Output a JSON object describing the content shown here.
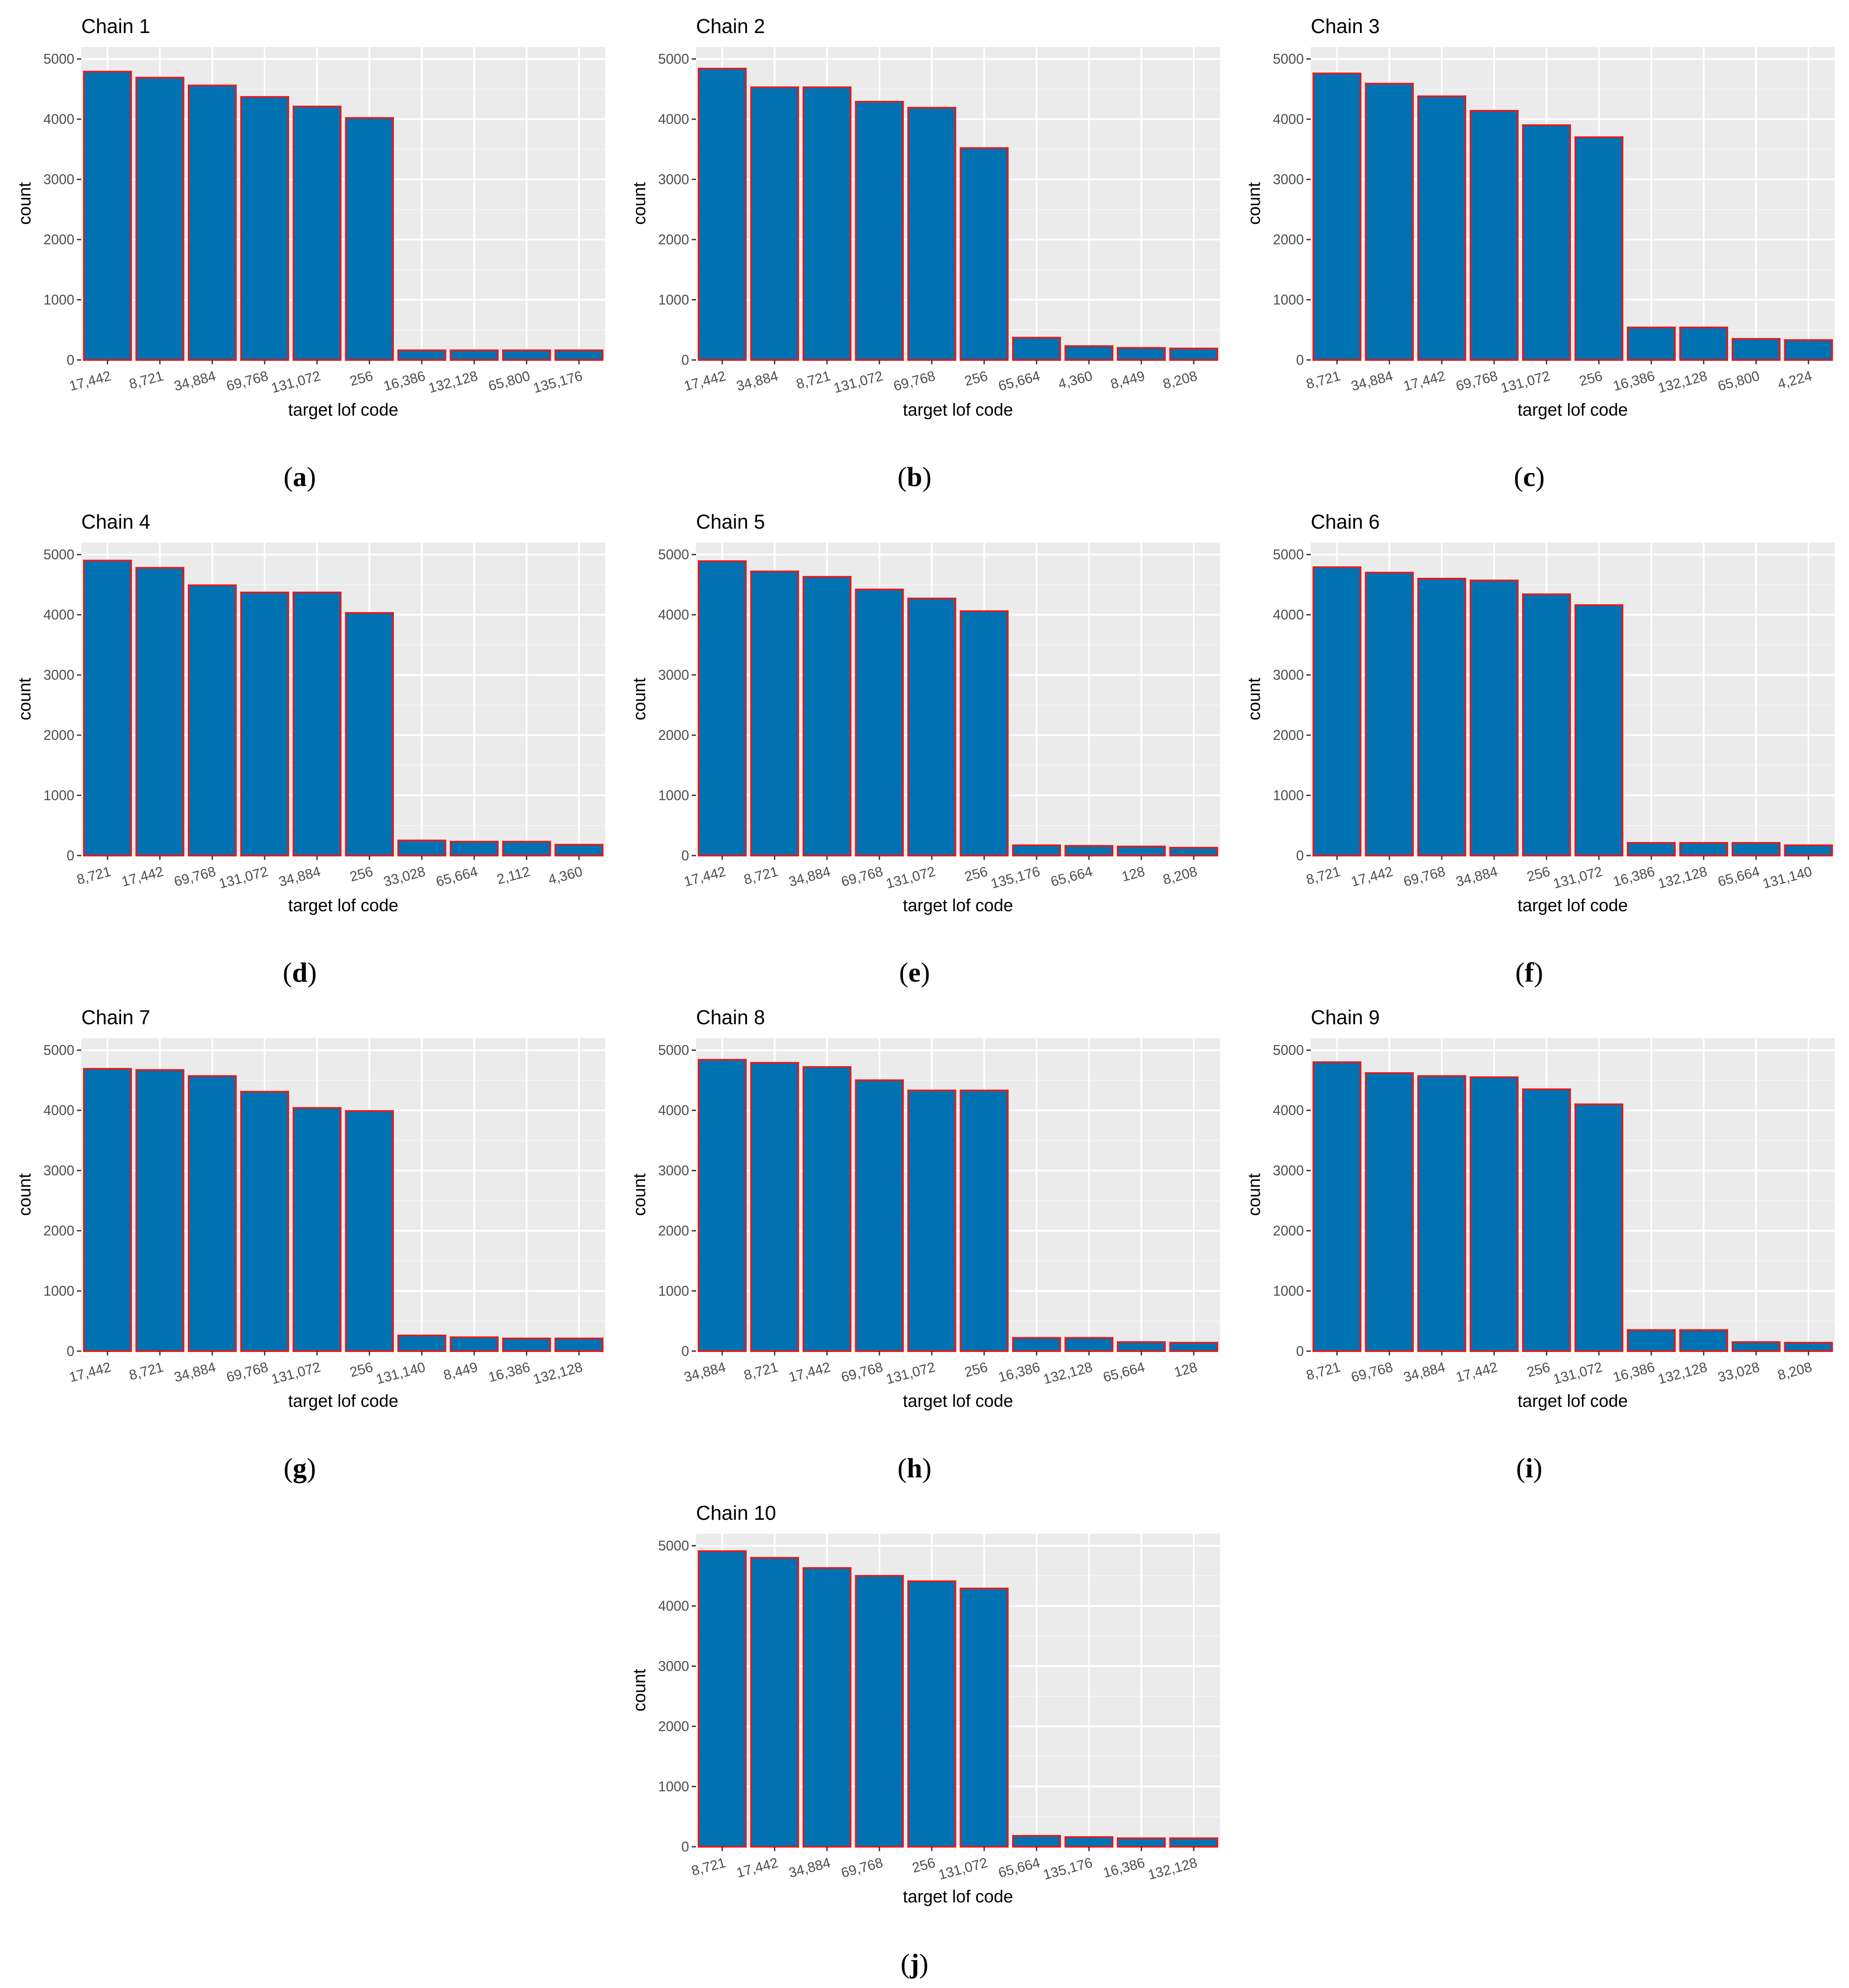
{
  "figure": {
    "bar_fill": "#0072b2",
    "bar_stroke": "#e31a1c",
    "panel_background": "#ebebeb",
    "grid_color": "#ffffff"
  },
  "chart_data": [
    {
      "type": "bar",
      "label": "(a)",
      "label_letter": "a",
      "title": "Chain 1",
      "xlabel": "target lof code",
      "ylabel": "count",
      "ylim": [
        0,
        5200
      ],
      "yticks": [
        0,
        1000,
        2000,
        3000,
        4000,
        5000
      ],
      "categories": [
        "17,442",
        "8,721",
        "34,884",
        "69,768",
        "131,072",
        "256",
        "16,386",
        "132,128",
        "65,800",
        "135,176"
      ],
      "values": [
        4790,
        4690,
        4560,
        4370,
        4210,
        4020,
        160,
        160,
        160,
        160
      ]
    },
    {
      "type": "bar",
      "label": "(b)",
      "label_letter": "b",
      "title": "Chain 2",
      "xlabel": "target lof code",
      "ylabel": "count",
      "ylim": [
        0,
        5200
      ],
      "yticks": [
        0,
        1000,
        2000,
        3000,
        4000,
        5000
      ],
      "categories": [
        "17,442",
        "34,884",
        "8,721",
        "131,072",
        "69,768",
        "256",
        "65,664",
        "4,360",
        "8,449",
        "8,208"
      ],
      "values": [
        4840,
        4530,
        4530,
        4290,
        4190,
        3520,
        370,
        230,
        200,
        190
      ]
    },
    {
      "type": "bar",
      "label": "(c)",
      "label_letter": "c",
      "title": "Chain 3",
      "xlabel": "target lof code",
      "ylabel": "count",
      "ylim": [
        0,
        5200
      ],
      "yticks": [
        0,
        1000,
        2000,
        3000,
        4000,
        5000
      ],
      "categories": [
        "8,721",
        "34,884",
        "17,442",
        "69,768",
        "131,072",
        "256",
        "16,386",
        "132,128",
        "65,800",
        "4,224"
      ],
      "values": [
        4760,
        4590,
        4380,
        4140,
        3900,
        3700,
        540,
        540,
        350,
        330
      ]
    },
    {
      "type": "bar",
      "label": "(d)",
      "label_letter": "d",
      "title": "Chain 4",
      "xlabel": "target lof code",
      "ylabel": "count",
      "ylim": [
        0,
        5200
      ],
      "yticks": [
        0,
        1000,
        2000,
        3000,
        4000,
        5000
      ],
      "categories": [
        "8,721",
        "17,442",
        "69,768",
        "131,072",
        "34,884",
        "256",
        "33,028",
        "65,664",
        "2,112",
        "4,360"
      ],
      "values": [
        4900,
        4780,
        4490,
        4370,
        4370,
        4030,
        250,
        230,
        230,
        180
      ]
    },
    {
      "type": "bar",
      "label": "(e)",
      "label_letter": "e",
      "title": "Chain 5",
      "xlabel": "target lof code",
      "ylabel": "count",
      "ylim": [
        0,
        5200
      ],
      "yticks": [
        0,
        1000,
        2000,
        3000,
        4000,
        5000
      ],
      "categories": [
        "17,442",
        "8,721",
        "34,884",
        "69,768",
        "131,072",
        "256",
        "135,176",
        "65,664",
        "128",
        "8,208"
      ],
      "values": [
        4890,
        4720,
        4630,
        4420,
        4270,
        4060,
        170,
        160,
        150,
        130
      ]
    },
    {
      "type": "bar",
      "label": "(f)",
      "label_letter": "f",
      "title": "Chain 6",
      "xlabel": "target lof code",
      "ylabel": "count",
      "ylim": [
        0,
        5200
      ],
      "yticks": [
        0,
        1000,
        2000,
        3000,
        4000,
        5000
      ],
      "categories": [
        "8,721",
        "17,442",
        "69,768",
        "34,884",
        "256",
        "131,072",
        "16,386",
        "132,128",
        "65,664",
        "131,140"
      ],
      "values": [
        4790,
        4700,
        4600,
        4570,
        4340,
        4160,
        210,
        210,
        210,
        170
      ]
    },
    {
      "type": "bar",
      "label": "(g)",
      "label_letter": "g",
      "title": "Chain 7",
      "xlabel": "target lof code",
      "ylabel": "count",
      "ylim": [
        0,
        5200
      ],
      "yticks": [
        0,
        1000,
        2000,
        3000,
        4000,
        5000
      ],
      "categories": [
        "17,442",
        "8,721",
        "34,884",
        "69,768",
        "131,072",
        "256",
        "131,140",
        "8,449",
        "16,386",
        "132,128"
      ],
      "values": [
        4690,
        4670,
        4570,
        4310,
        4040,
        3990,
        260,
        230,
        210,
        210
      ]
    },
    {
      "type": "bar",
      "label": "(h)",
      "label_letter": "h",
      "title": "Chain 8",
      "xlabel": "target lof code",
      "ylabel": "count",
      "ylim": [
        0,
        5200
      ],
      "yticks": [
        0,
        1000,
        2000,
        3000,
        4000,
        5000
      ],
      "categories": [
        "34,884",
        "8,721",
        "17,442",
        "69,768",
        "131,072",
        "256",
        "16,386",
        "132,128",
        "65,664",
        "128"
      ],
      "values": [
        4840,
        4790,
        4720,
        4500,
        4330,
        4330,
        220,
        220,
        150,
        140
      ]
    },
    {
      "type": "bar",
      "label": "(i)",
      "label_letter": "i",
      "title": "Chain 9",
      "xlabel": "target lof code",
      "ylabel": "count",
      "ylim": [
        0,
        5200
      ],
      "yticks": [
        0,
        1000,
        2000,
        3000,
        4000,
        5000
      ],
      "categories": [
        "8,721",
        "69,768",
        "34,884",
        "17,442",
        "256",
        "131,072",
        "16,386",
        "132,128",
        "33,028",
        "8,208"
      ],
      "values": [
        4800,
        4620,
        4570,
        4550,
        4350,
        4100,
        350,
        350,
        150,
        140
      ]
    },
    {
      "type": "bar",
      "label": "(j)",
      "label_letter": "j",
      "title": "Chain 10",
      "xlabel": "target lof code",
      "ylabel": "count",
      "ylim": [
        0,
        5200
      ],
      "yticks": [
        0,
        1000,
        2000,
        3000,
        4000,
        5000
      ],
      "categories": [
        "8,721",
        "17,442",
        "34,884",
        "69,768",
        "256",
        "131,072",
        "65,664",
        "135,176",
        "16,386",
        "132,128"
      ],
      "values": [
        4910,
        4800,
        4630,
        4500,
        4410,
        4290,
        180,
        160,
        140,
        140
      ]
    }
  ]
}
